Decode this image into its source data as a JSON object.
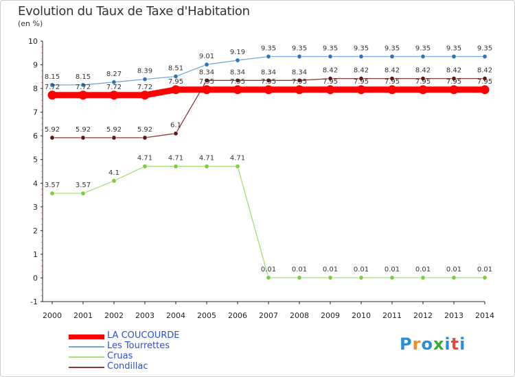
{
  "header": {
    "title": "Evolution du Taux de Taxe d'Habitation",
    "subtitle": "(en %)"
  },
  "logo": {
    "text": "Proxiti",
    "colors": [
      "#2a8fd8",
      "#f28c1e",
      "#2a8fd8",
      "#3aaa35",
      "#2a8fd8",
      "#e84c3d",
      "#2a8fd8"
    ]
  },
  "chart_data": {
    "type": "line",
    "x": [
      2000,
      2001,
      2002,
      2003,
      2004,
      2005,
      2006,
      2007,
      2008,
      2009,
      2010,
      2011,
      2012,
      2013,
      2014
    ],
    "ylim": [
      -1,
      10
    ],
    "yticks": [
      -1,
      0,
      1,
      2,
      3,
      4,
      5,
      6,
      7,
      8,
      9,
      10
    ],
    "grid": false,
    "legend_position": "bottom-left",
    "series": [
      {
        "name": "LA COUCOURDE",
        "color": "#ff0000",
        "values": [
          7.72,
          7.72,
          7.72,
          7.72,
          7.95,
          7.95,
          7.95,
          7.95,
          7.95,
          7.95,
          7.95,
          7.95,
          7.95,
          7.95,
          7.95
        ],
        "labels": [
          "7.72",
          "7.72",
          "7.72",
          "7.72",
          "7.95",
          "7.95",
          "7.95",
          "7.95",
          "7.95",
          "7.95",
          "7.95",
          "7.95",
          "7.95",
          "7.95",
          "7.95"
        ]
      },
      {
        "name": "Les Tourrettes",
        "color": "#6fa8dc",
        "marker": "#2e75b6",
        "values": [
          8.15,
          8.15,
          8.27,
          8.39,
          8.51,
          9.01,
          9.19,
          9.35,
          9.35,
          9.35,
          9.35,
          9.35,
          9.35,
          9.35,
          9.35
        ],
        "labels": [
          "8.15",
          "8.15",
          "8.27",
          "8.39",
          "8.51",
          "9.01",
          "9.19",
          "9.35",
          "9.35",
          "9.35",
          "9.35",
          "9.35",
          "9.35",
          "9.35",
          "9.35"
        ]
      },
      {
        "name": "Cruas",
        "color": "#a6dc7a",
        "marker": "#7ccc3c",
        "values": [
          3.57,
          3.57,
          4.1,
          4.71,
          4.71,
          4.71,
          4.71,
          0.01,
          0.01,
          0.01,
          0.01,
          0.01,
          0.01,
          0.01,
          0.01
        ],
        "labels": [
          "3.57",
          "3.57",
          "4.1",
          "4.71",
          "4.71",
          "4.71",
          "4.71",
          "0.01",
          "0.01",
          "0.01",
          "0.01",
          "0.01",
          "0.01",
          "0.01",
          "0.01"
        ]
      },
      {
        "name": "Condillac",
        "color": "#8b3a3a",
        "marker": "#5a1a1a",
        "values": [
          5.92,
          5.92,
          5.92,
          5.92,
          6.1,
          8.34,
          8.34,
          8.34,
          8.34,
          8.42,
          8.42,
          8.42,
          8.42,
          8.42,
          8.42
        ],
        "labels": [
          "5.92",
          "5.92",
          "5.92",
          "5.92",
          "6.1",
          "8.34",
          "8.34",
          "8.34",
          "8.34",
          "8.42",
          "8.42",
          "8.42",
          "8.42",
          "8.42",
          "8.42"
        ]
      }
    ]
  }
}
